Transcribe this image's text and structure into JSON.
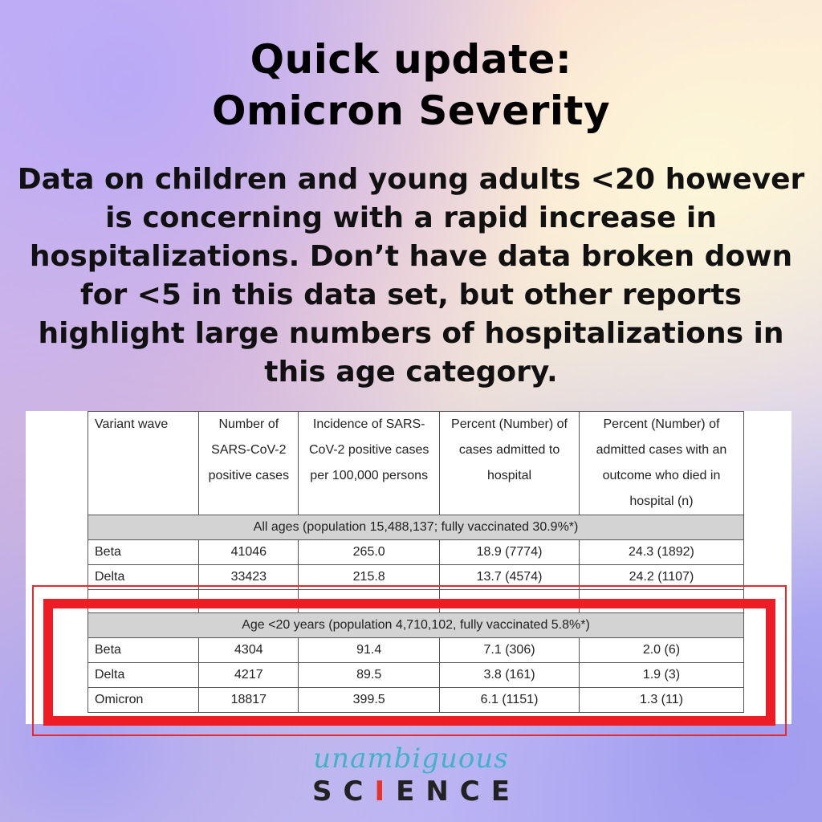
{
  "title": {
    "line1": "Quick update:",
    "line2": "Omicron Severity"
  },
  "body": "Data on children and young adults <20 however is concerning with a rapid increase in hospitalizations. Don’t have data broken down for <5 in this data set, but other reports highlight large numbers of hospitalizations in this age category.",
  "table": {
    "headers": [
      "Variant wave",
      "Number of SARS-CoV-2 positive cases",
      "Incidence of SARS-CoV-2 positive cases per 100,000 persons",
      "Percent (Number) of cases admitted to hospital",
      "Percent (Number) of admitted cases with an outcome who died in hospital (n)"
    ],
    "section_all": "All ages (population 15,488,137; fully vaccinated 30.9%*)",
    "all_rows": [
      [
        "Beta",
        "41046",
        "265.0",
        "18.9 (7774)",
        "24.3 (1892)"
      ],
      [
        "Delta",
        "33423",
        "215.8",
        "13.7 (4574)",
        "24.2 (1107)"
      ]
    ],
    "section_young": "Age <20 years (population 4,710,102, fully vaccinated 5.8%*)",
    "young_rows": [
      [
        "Beta",
        "4304",
        "91.4",
        "7.1 (306)",
        "2.0 (6)"
      ],
      [
        "Delta",
        "4217",
        "89.5",
        "3.8 (161)",
        "1.9 (3)"
      ],
      [
        "Omicron",
        "18817",
        "399.5",
        "6.1 (1151)",
        "1.3 (11)"
      ]
    ]
  },
  "logo": {
    "script": "unambiguous",
    "science_pre": "SC",
    "science_mark": "I",
    "science_post": "ENCE"
  },
  "colors": {
    "highlight": "#ee1c24",
    "logo_script": "#3fb3c8"
  }
}
